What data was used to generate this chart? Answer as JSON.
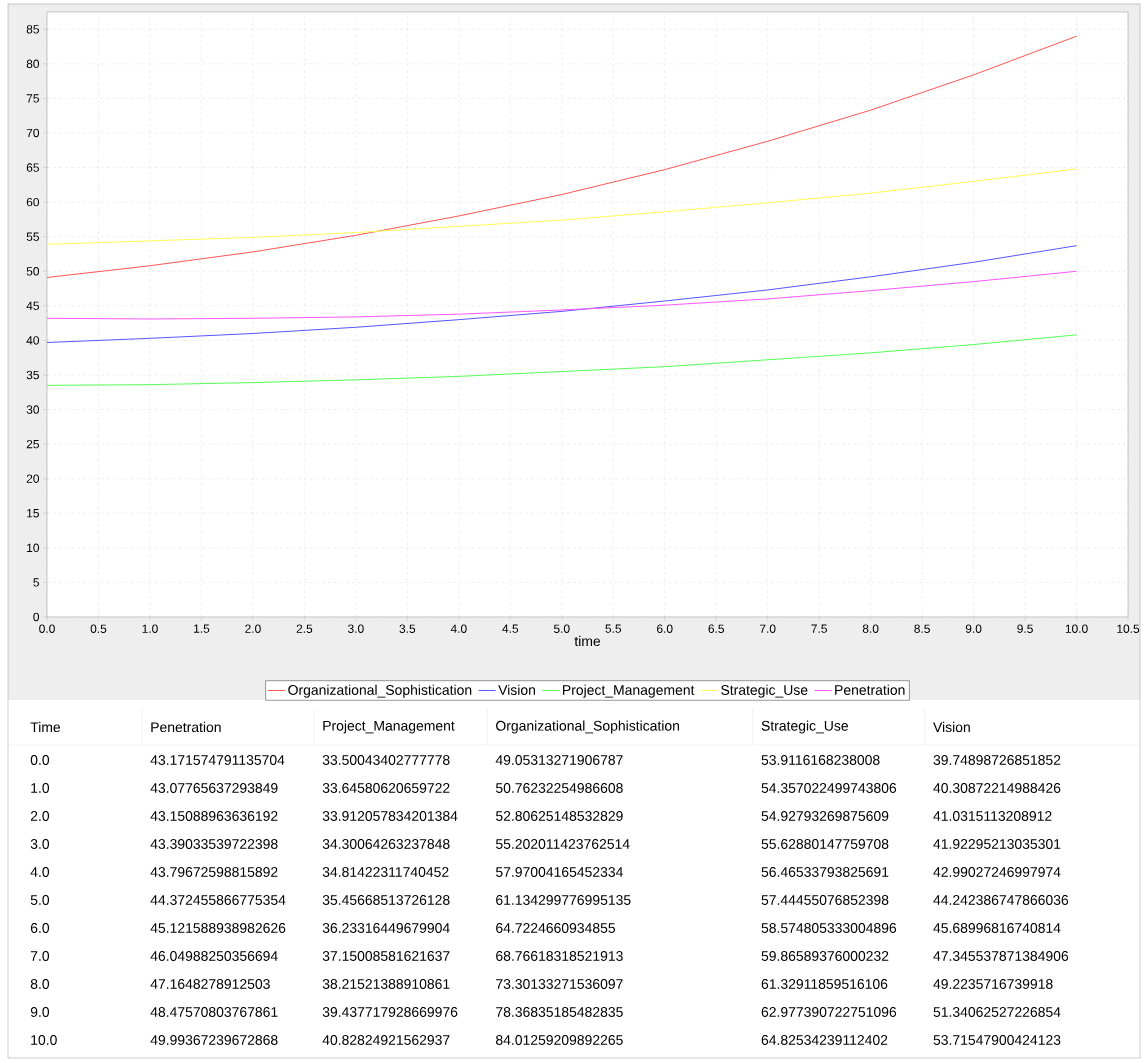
{
  "chart_data": [
    {
      "type": "line",
      "xlabel": "time",
      "x": [
        0,
        1,
        2,
        3,
        4,
        5,
        6,
        7,
        8,
        9,
        10
      ],
      "series": [
        {
          "name": "Organizational_Sophistication",
          "color": "#ff5555",
          "values": [
            49.1,
            50.8,
            52.8,
            55.2,
            58.0,
            61.1,
            64.7,
            68.8,
            73.3,
            78.4,
            84.0
          ]
        },
        {
          "name": "Vision",
          "color": "#5555ff",
          "values": [
            39.7,
            40.3,
            41.0,
            41.9,
            43.0,
            44.2,
            45.7,
            47.3,
            49.2,
            51.3,
            53.7
          ]
        },
        {
          "name": "Project_Management",
          "color": "#55ff55",
          "values": [
            33.5,
            33.6,
            33.9,
            34.3,
            34.8,
            35.5,
            36.2,
            37.2,
            38.2,
            39.4,
            40.8
          ]
        },
        {
          "name": "Strategic_Use",
          "color": "#ffff55",
          "values": [
            53.9,
            54.4,
            54.9,
            55.6,
            56.5,
            57.4,
            58.6,
            59.9,
            61.3,
            63.0,
            64.8
          ]
        },
        {
          "name": "Penetration",
          "color": "#ff55ff",
          "values": [
            43.2,
            43.1,
            43.2,
            43.4,
            43.8,
            44.4,
            45.1,
            46.0,
            47.2,
            48.5,
            50.0
          ]
        }
      ],
      "xlim": [
        0,
        10.5
      ],
      "xticks": [
        {
          "value": 0,
          "label": "0.0"
        },
        {
          "value": 0.5,
          "label": "0.5"
        },
        {
          "value": 1,
          "label": "1.0"
        },
        {
          "value": 1.5,
          "label": "1.5"
        },
        {
          "value": 2,
          "label": "2.0"
        },
        {
          "value": 2.5,
          "label": "2.5"
        },
        {
          "value": 3,
          "label": "3.0"
        },
        {
          "value": 3.5,
          "label": "3.5"
        },
        {
          "value": 4,
          "label": "4.0"
        },
        {
          "value": 4.5,
          "label": "4.5"
        },
        {
          "value": 5,
          "label": "5.0"
        },
        {
          "value": 5.5,
          "label": "5.5"
        },
        {
          "value": 6,
          "label": "6.0"
        },
        {
          "value": 6.5,
          "label": "6.5"
        },
        {
          "value": 7,
          "label": "7.0"
        },
        {
          "value": 7.5,
          "label": "7.5"
        },
        {
          "value": 8,
          "label": "8.0"
        },
        {
          "value": 8.5,
          "label": "8.5"
        },
        {
          "value": 9,
          "label": "9.0"
        },
        {
          "value": 9.5,
          "label": "9.5"
        },
        {
          "value": 10,
          "label": "10.0"
        },
        {
          "value": 10.5,
          "label": "10.5"
        }
      ],
      "ylim": [
        0,
        87.5
      ],
      "yticks": [
        0,
        5,
        10,
        15,
        20,
        25,
        30,
        35,
        40,
        45,
        50,
        55,
        60,
        65,
        70,
        75,
        80,
        85
      ],
      "grid": true,
      "legend": "bottom"
    },
    {
      "type": "heatmap",
      "ylabel": "Time",
      "categories": [
        "Penetration",
        "Project_Management",
        "Organizational_Sophistication",
        "Strategic_Use",
        "Vision"
      ],
      "y_categories": [
        "0.0",
        "1.0",
        "2.0",
        "3.0",
        "4.0",
        "5.0",
        "6.0",
        "7.0",
        "8.0",
        "9.0",
        "10.0"
      ],
      "cells": [
        [
          43.171574791135704,
          33.50043402777778,
          49.05313271906787,
          53.9116168238008,
          39.74898726851852
        ],
        [
          43.07765637293849,
          33.64580620659722,
          50.76232254986608,
          54.357022499743806,
          40.30872214988426
        ],
        [
          43.15088963636192,
          33.912057834201384,
          52.80625148532829,
          54.92793269875609,
          41.0315113208912
        ],
        [
          43.39033539722398,
          34.30064263237848,
          55.202011423762514,
          55.62880147759708,
          41.92295213035301
        ],
        [
          43.79672598815892,
          34.81422311740452,
          57.97004165452334,
          56.46533793825691,
          42.99027246997974
        ],
        [
          44.372455866775354,
          35.45668513726128,
          61.134299776995135,
          57.44455076852398,
          44.242386747866036
        ],
        [
          45.121588938982626,
          36.23316449679904,
          64.7224660934855,
          58.574805333004896,
          45.68996816740814
        ],
        [
          46.04988250356694,
          37.15008581621637,
          68.76618318521913,
          59.86589376000232,
          47.345537871384906
        ],
        [
          47.1648278912503,
          38.21521388910861,
          73.30133271536097,
          61.32911859516106,
          49.2235716739918
        ],
        [
          48.47570803767861,
          39.437717928669976,
          78.36835185482835,
          62.977390722751096,
          51.34062527226854
        ],
        [
          49.99367239672868,
          40.82824921562937,
          84.01259209892265,
          64.82534239112402,
          53.71547900424123
        ]
      ],
      "data_labels": true
    }
  ]
}
